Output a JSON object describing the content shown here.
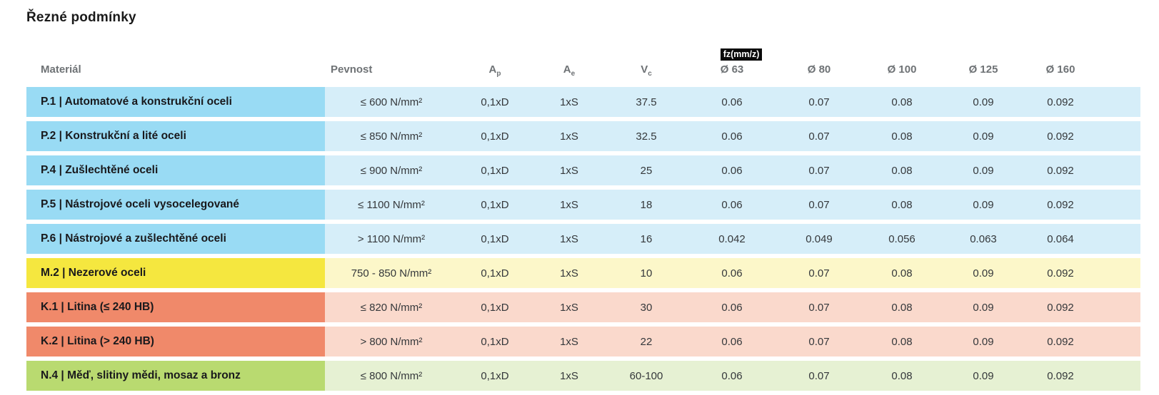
{
  "title": "Řezné podmínky",
  "table": {
    "headers": {
      "material": "Materiál",
      "pevnost": "Pevnost",
      "ap": {
        "base": "A",
        "sub": "p"
      },
      "ae": {
        "base": "A",
        "sub": "e"
      },
      "vc": {
        "base": "V",
        "sub": "c"
      },
      "fz_badge": "fz(mm/z)",
      "diameters": [
        "Ø 63",
        "Ø 80",
        "Ø 100",
        "Ø 125",
        "Ø 160"
      ]
    },
    "rows": [
      {
        "color": "blue",
        "material": "P.1 | Automatové a konstrukční oceli",
        "pevnost": "≤ 600 N/mm²",
        "ap": "0,1xD",
        "ae": "1xS",
        "vc": "37.5",
        "fz": [
          "0.06",
          "0.07",
          "0.08",
          "0.09",
          "0.092"
        ]
      },
      {
        "color": "blue",
        "material": "P.2 | Konstrukční a lité oceli",
        "pevnost": "≤ 850 N/mm²",
        "ap": "0,1xD",
        "ae": "1xS",
        "vc": "32.5",
        "fz": [
          "0.06",
          "0.07",
          "0.08",
          "0.09",
          "0.092"
        ]
      },
      {
        "color": "blue",
        "material": "P.4 | Zušlechtěné oceli",
        "pevnost": "≤ 900 N/mm²",
        "ap": "0,1xD",
        "ae": "1xS",
        "vc": "25",
        "fz": [
          "0.06",
          "0.07",
          "0.08",
          "0.09",
          "0.092"
        ]
      },
      {
        "color": "blue",
        "material": "P.5 | Nástrojové oceli vysocelegované",
        "pevnost": "≤ 1100 N/mm²",
        "ap": "0,1xD",
        "ae": "1xS",
        "vc": "18",
        "fz": [
          "0.06",
          "0.07",
          "0.08",
          "0.09",
          "0.092"
        ]
      },
      {
        "color": "blue",
        "material": "P.6 | Nástrojové a zušlechtěné oceli",
        "pevnost": "> 1100 N/mm²",
        "ap": "0,1xD",
        "ae": "1xS",
        "vc": "16",
        "fz": [
          "0.042",
          "0.049",
          "0.056",
          "0.063",
          "0.064"
        ]
      },
      {
        "color": "yellow",
        "material": "M.2 | Nezerové oceli",
        "pevnost": "750 - 850 N/mm²",
        "ap": "0,1xD",
        "ae": "1xS",
        "vc": "10",
        "fz": [
          "0.06",
          "0.07",
          "0.08",
          "0.09",
          "0.092"
        ]
      },
      {
        "color": "salmon",
        "material": "K.1 | Litina (≤ 240 HB)",
        "pevnost": "≤ 820 N/mm²",
        "ap": "0,1xD",
        "ae": "1xS",
        "vc": "30",
        "fz": [
          "0.06",
          "0.07",
          "0.08",
          "0.09",
          "0.092"
        ]
      },
      {
        "color": "salmon",
        "material": "K.2 | Litina (> 240 HB)",
        "pevnost": "> 800 N/mm²",
        "ap": "0,1xD",
        "ae": "1xS",
        "vc": "22",
        "fz": [
          "0.06",
          "0.07",
          "0.08",
          "0.09",
          "0.092"
        ]
      },
      {
        "color": "green",
        "material": "N.4 | Měď, slitiny mědi, mosaz a bronz",
        "pevnost": "≤ 800 N/mm²",
        "ap": "0,1xD",
        "ae": "1xS",
        "vc": "60-100",
        "fz": [
          "0.06",
          "0.07",
          "0.08",
          "0.09",
          "0.092"
        ]
      }
    ],
    "palette": {
      "blue": {
        "strong": "#99dbf4",
        "light": "#d6eef9"
      },
      "yellow": {
        "strong": "#f5e73f",
        "light": "#fcf7c9"
      },
      "salmon": {
        "strong": "#f0896a",
        "light": "#fad9cc"
      },
      "green": {
        "strong": "#b9da70",
        "light": "#e6f1d3"
      },
      "badge_bg": "#0a0a0a",
      "badge_text": "#ffffff",
      "header_text": "#6e7275",
      "title_text": "#1a1a1a"
    }
  }
}
